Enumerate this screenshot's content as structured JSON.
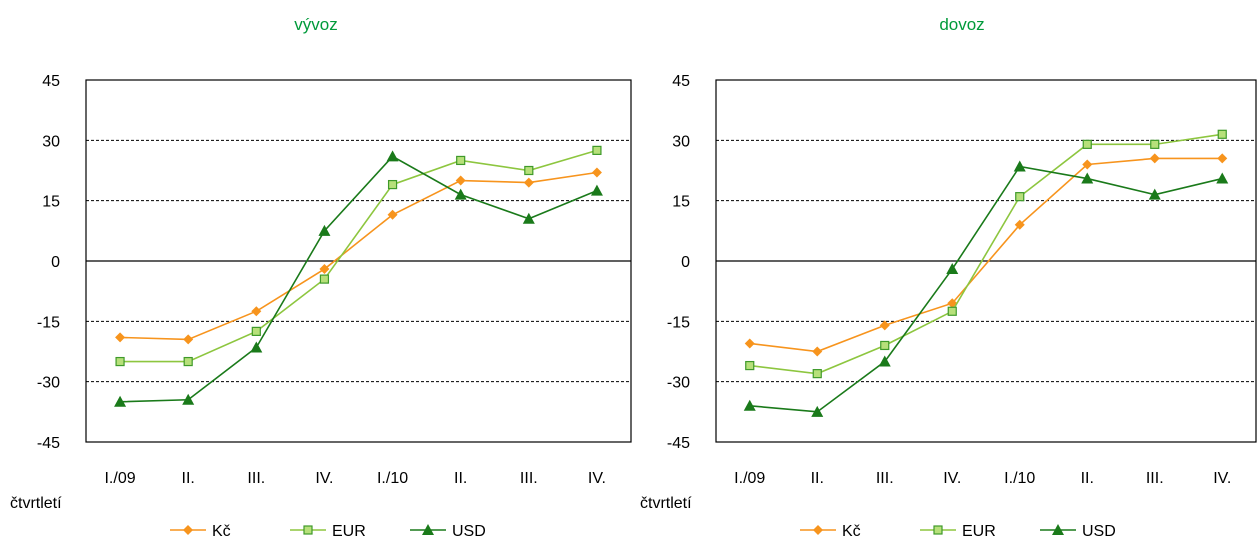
{
  "chart_data": [
    {
      "type": "line",
      "title": "vývoz",
      "xlabel": "čtvrtletí",
      "categories": [
        "I./09",
        "II.",
        "III.",
        "IV.",
        "I./10",
        "II.",
        "III.",
        "IV."
      ],
      "yticks": [
        "45",
        "30",
        "15",
        "0",
        "-15",
        "-30",
        "-45"
      ],
      "ylim": [
        -45,
        45
      ],
      "grid": true,
      "legend": "bottom",
      "series": [
        {
          "name": "Kč",
          "color": "#f7941d",
          "marker": "diamond",
          "values": [
            -19,
            -19.5,
            -12.5,
            -2,
            11.5,
            20,
            19.5,
            22
          ]
        },
        {
          "name": "EUR",
          "color": "#8dc63f",
          "marker": "square",
          "values": [
            -25,
            -25,
            -17.5,
            -4.5,
            19,
            25,
            22.5,
            27.5
          ]
        },
        {
          "name": "USD",
          "color": "#1a7a1a",
          "marker": "triangle",
          "values": [
            -35,
            -34.5,
            -21.5,
            7.5,
            26,
            16.5,
            10.5,
            17.5
          ]
        }
      ]
    },
    {
      "type": "line",
      "title": "dovoz",
      "xlabel": "čtvrtletí",
      "categories": [
        "I./09",
        "II.",
        "III.",
        "IV.",
        "I./10",
        "II.",
        "III.",
        "IV."
      ],
      "yticks": [
        "45",
        "30",
        "15",
        "0",
        "-15",
        "-30",
        "-45"
      ],
      "ylim": [
        -45,
        45
      ],
      "grid": true,
      "legend": "bottom",
      "series": [
        {
          "name": "Kč",
          "color": "#f7941d",
          "marker": "diamond",
          "values": [
            -20.5,
            -22.5,
            -16,
            -10.5,
            9,
            24,
            25.5,
            25.5
          ]
        },
        {
          "name": "EUR",
          "color": "#8dc63f",
          "marker": "square",
          "values": [
            -26,
            -28,
            -21,
            -12.5,
            16,
            29,
            29,
            31.5
          ]
        },
        {
          "name": "USD",
          "color": "#1a7a1a",
          "marker": "triangle",
          "values": [
            -36,
            -37.5,
            -25,
            -2,
            23.5,
            20.5,
            16.5,
            20.5
          ]
        }
      ]
    }
  ]
}
